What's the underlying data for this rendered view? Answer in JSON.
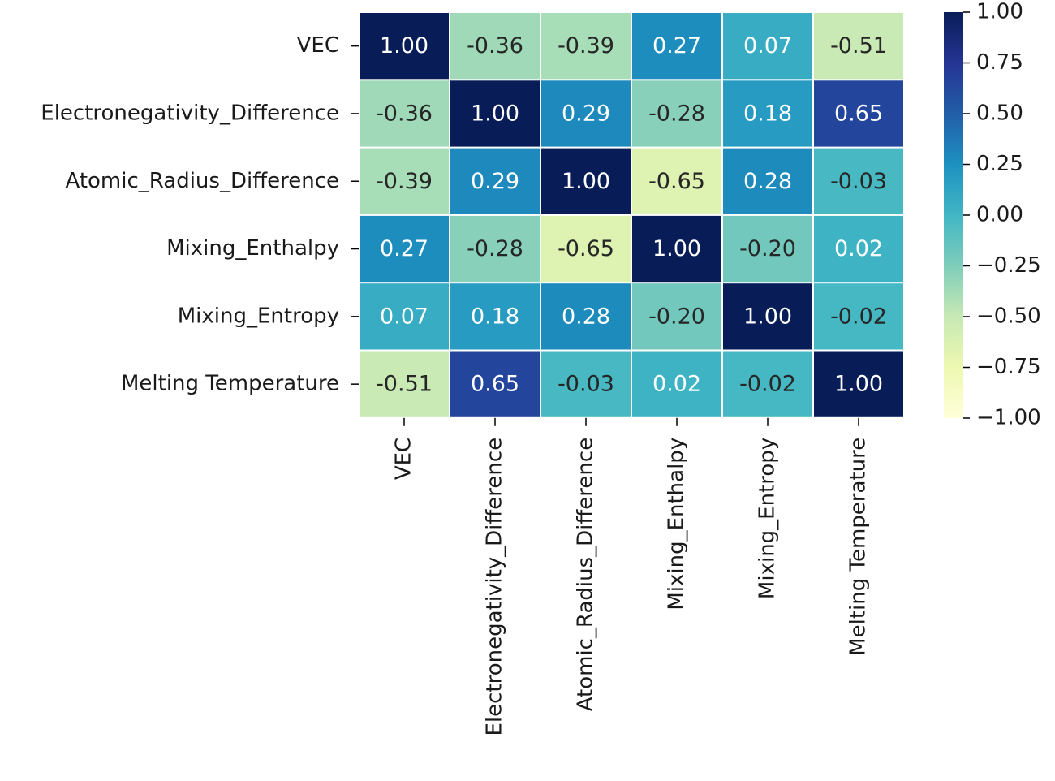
{
  "chart_data": {
    "type": "heatmap",
    "title": "",
    "xlabel": "",
    "ylabel": "",
    "x_categories": [
      "VEC",
      "Electronegativity_Difference",
      "Atomic_Radius_Difference",
      "Mixing_Enthalpy",
      "Mixing_Entropy",
      "Melting Temperature"
    ],
    "y_categories": [
      "VEC",
      "Electronegativity_Difference",
      "Atomic_Radius_Difference",
      "Mixing_Enthalpy",
      "Mixing_Entropy",
      "Melting Temperature"
    ],
    "values": [
      [
        1.0,
        -0.36,
        -0.39,
        0.27,
        0.07,
        -0.51
      ],
      [
        -0.36,
        1.0,
        0.29,
        -0.28,
        0.18,
        0.65
      ],
      [
        -0.39,
        0.29,
        1.0,
        -0.65,
        0.28,
        -0.03
      ],
      [
        0.27,
        -0.28,
        -0.65,
        1.0,
        -0.2,
        0.02
      ],
      [
        0.07,
        0.18,
        0.28,
        -0.2,
        1.0,
        -0.02
      ],
      [
        -0.51,
        0.65,
        -0.03,
        0.02,
        -0.02,
        1.0
      ]
    ],
    "cell_labels": [
      [
        "1.00",
        "-0.36",
        "-0.39",
        "0.27",
        "0.07",
        "-0.51"
      ],
      [
        "-0.36",
        "1.00",
        "0.29",
        "-0.28",
        "0.18",
        "0.65"
      ],
      [
        "-0.39",
        "0.29",
        "1.00",
        "-0.65",
        "0.28",
        "-0.03"
      ],
      [
        "0.27",
        "-0.28",
        "-0.65",
        "1.00",
        "-0.20",
        "0.02"
      ],
      [
        "0.07",
        "0.18",
        "0.28",
        "-0.20",
        "1.00",
        "-0.02"
      ],
      [
        "-0.51",
        "0.65",
        "-0.03",
        "0.02",
        "-0.02",
        "1.00"
      ]
    ],
    "vmin": -1.0,
    "vmax": 1.0,
    "colormap": "YlGnBu",
    "colorbar": {
      "ticks": [
        1.0,
        0.75,
        0.5,
        0.25,
        0.0,
        -0.25,
        -0.5,
        -0.75,
        -1.0
      ],
      "tick_labels": [
        "1.00",
        "0.75",
        "0.50",
        "0.25",
        "0.00",
        "−0.25",
        "−0.50",
        "−0.75",
        "−1.00"
      ],
      "placement": "right"
    },
    "grid_lines": true,
    "grid_color": "#ffffff"
  }
}
